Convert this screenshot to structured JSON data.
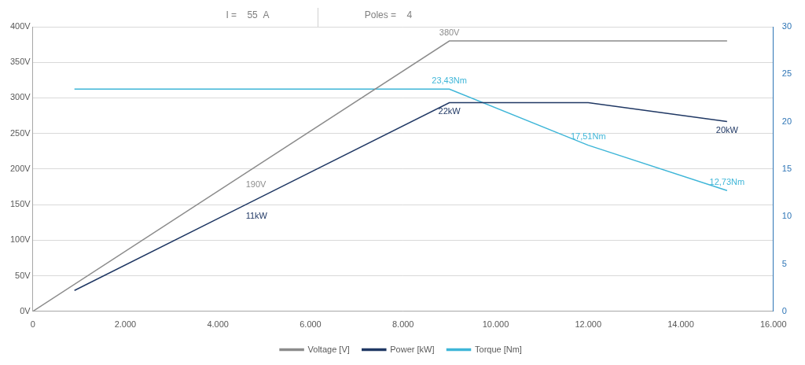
{
  "chart_data": {
    "type": "line",
    "subtitle": [
      "I =    55  A",
      "Poles =    4"
    ],
    "xlim": [
      0,
      16000
    ],
    "xticks": [
      0,
      {
        "value": 2000,
        "label": "2.000"
      },
      {
        "value": 4000,
        "label": "4.000"
      },
      {
        "value": 6000,
        "label": "6.000"
      },
      {
        "value": 8000,
        "label": "8.000"
      },
      {
        "value": 10000,
        "label": "10.000"
      },
      {
        "value": 12000,
        "label": "12.000"
      },
      {
        "value": 14000,
        "label": "14.000"
      },
      {
        "value": 16000,
        "label": "16.000"
      }
    ],
    "ylim": [
      0,
      400
    ],
    "yticks": [
      {
        "value": 0,
        "label": "0V"
      },
      {
        "value": 50,
        "label": "50V"
      },
      {
        "value": 100,
        "label": "100V"
      },
      {
        "value": 150,
        "label": "150V"
      },
      {
        "value": 200,
        "label": "200V"
      },
      {
        "value": 250,
        "label": "250V"
      },
      {
        "value": 300,
        "label": "300V"
      },
      {
        "value": 350,
        "label": "350V"
      },
      {
        "value": 400,
        "label": "400V"
      }
    ],
    "y2lim": [
      0,
      30
    ],
    "y2ticks": [
      0,
      5,
      10,
      15,
      20,
      25,
      30
    ],
    "grid": true,
    "legend": "bottom",
    "series": [
      {
        "name": "Voltage [V]",
        "color": "#8c8c8c",
        "x": [
          0,
          4500,
          9000,
          15000
        ],
        "values": [
          0,
          190,
          380,
          380
        ],
        "value_labels": [
          null,
          "190V",
          "380V",
          null
        ]
      },
      {
        "name": "Power [kW]",
        "color": "#203864",
        "axis": "y2",
        "x": [
          900,
          4500,
          9000,
          12000,
          15000
        ],
        "values": [
          2.2,
          11,
          22,
          22,
          20
        ],
        "value_labels": [
          null,
          "11kW",
          "22kW",
          null,
          "20kW"
        ]
      },
      {
        "name": "Torque [Nm]",
        "color": "#3fb6d8",
        "axis": "y2",
        "x": [
          900,
          9000,
          12000,
          15000
        ],
        "values": [
          23.43,
          23.43,
          17.51,
          12.73
        ],
        "value_labels": [
          null,
          "23,43Nm",
          "17,51Nm",
          "12,73Nm"
        ]
      }
    ]
  }
}
